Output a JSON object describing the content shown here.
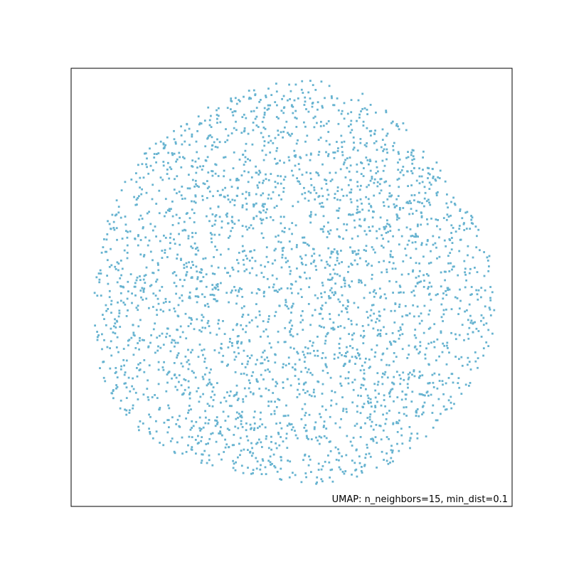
{
  "chart_data": {
    "type": "scatter",
    "annotation": "UMAP: n_neighbors=15, min_dist=0.1",
    "point_color": "#67B3D0",
    "grid": false,
    "axes_ticks": false,
    "points": {
      "description_visible_only": "dense disc-shaped cloud of points centered in the panel, nearly uniform density, radius roughly 0.46 of panel width",
      "approx_count": 3000,
      "seed": 1234
    }
  }
}
